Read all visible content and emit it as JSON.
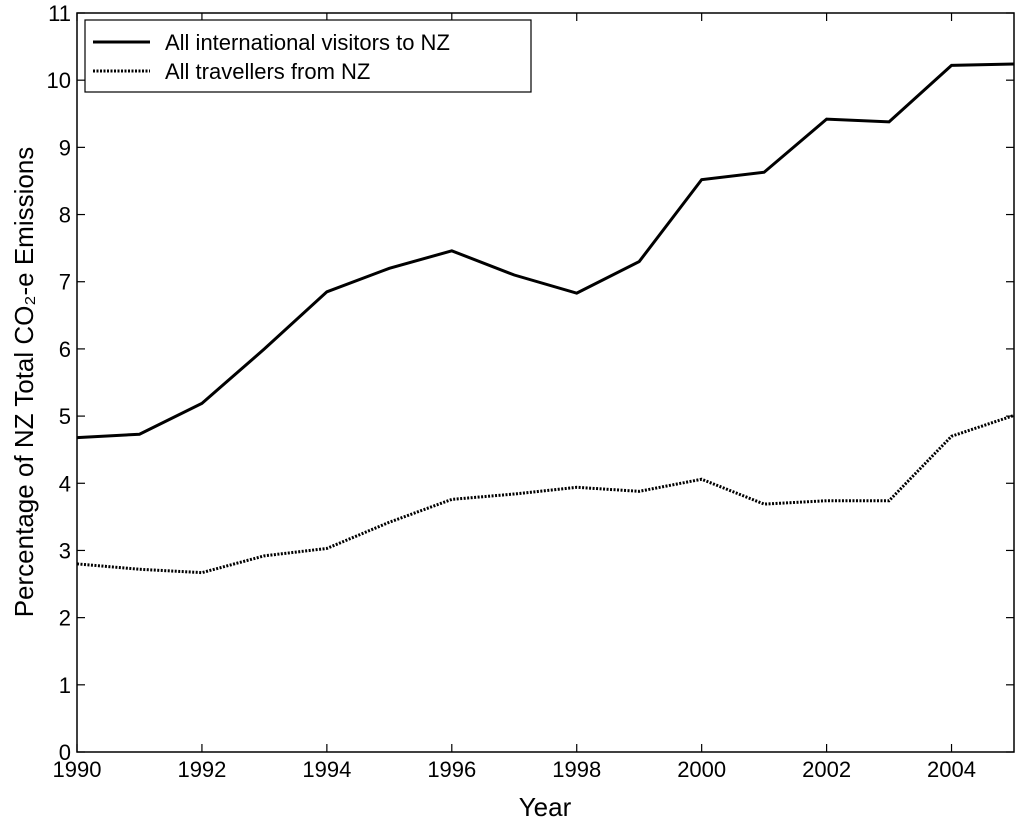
{
  "chart_data": {
    "type": "line",
    "xlabel": "Year",
    "ylabel": "Percentage of NZ Total CO₂-e Emissions",
    "x": [
      1990,
      1991,
      1992,
      1993,
      1994,
      1995,
      1996,
      1997,
      1998,
      1999,
      2000,
      2001,
      2002,
      2003,
      2004,
      2005
    ],
    "series": [
      {
        "name": "All international visitors to NZ",
        "color": "#000000",
        "dash": "solid",
        "values": [
          4.68,
          4.73,
          5.19,
          6.0,
          6.85,
          7.2,
          7.46,
          7.1,
          6.83,
          7.3,
          8.52,
          8.63,
          9.42,
          9.38,
          10.22,
          10.24
        ]
      },
      {
        "name": "All travellers from NZ",
        "color": "#000000",
        "dash": "dotted",
        "values": [
          2.8,
          2.72,
          2.67,
          2.92,
          3.03,
          3.42,
          3.76,
          3.84,
          3.94,
          3.88,
          4.06,
          3.69,
          3.74,
          3.74,
          4.7,
          5.01
        ]
      }
    ],
    "xlim": [
      1990,
      2005
    ],
    "xticks": [
      1990,
      1992,
      1994,
      1996,
      1998,
      2000,
      2002,
      2004
    ],
    "ylim": [
      0,
      11
    ],
    "yticks": [
      0,
      1,
      2,
      3,
      4,
      5,
      6,
      7,
      8,
      9,
      10,
      11
    ],
    "grid": false,
    "legend": "upper left"
  }
}
